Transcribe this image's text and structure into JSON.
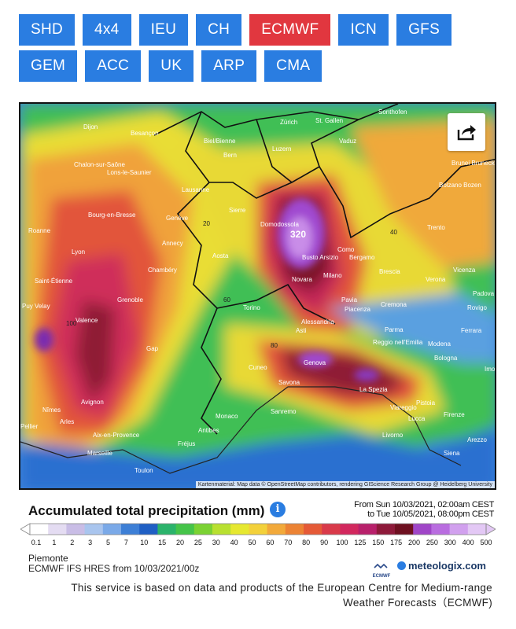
{
  "models": {
    "row1": [
      "SHD",
      "4x4",
      "IEU",
      "CH",
      "ECMWF",
      "ICN",
      "GFS"
    ],
    "row2": [
      "GEM",
      "ACC",
      "UK",
      "ARP",
      "CMA"
    ],
    "active": "ECMWF"
  },
  "map": {
    "share_icon": "share-icon",
    "attribution": "Kartenmaterial: Map data © OpenStreetMap contributors, rendering GIScience Research Group @ Heidelberg University",
    "max_label": "320",
    "cities": [
      "Sonthofen",
      "Dijon",
      "Besançon",
      "Zürich",
      "St. Gallen",
      "Vaduz",
      "Brunei Bruneck",
      "Biel/Bienne",
      "Luzern",
      "Bern",
      "Chalon-sur-Saône",
      "Lons-le-Saunier",
      "Lausanne",
      "Bolzano Bozen",
      "Sierre",
      "Bourg-en-Bresse",
      "Genève",
      "Roanne",
      "Trento",
      "Domodossola",
      "Annecy",
      "Como",
      "Lyon",
      "Aosta",
      "Bergamo",
      "Busto Arsizio",
      "Chambéry",
      "Vicenza",
      "Brescia",
      "Saint-Étienne",
      "Milano",
      "Verona",
      "Novara",
      "Padova",
      "Grenoble",
      "Puy Velay",
      "Pavia",
      "Cremona",
      "Rovigo",
      "Torino",
      "Piacenza",
      "Valence",
      "Alessandria",
      "Asti",
      "Parma",
      "Ferrara",
      "Modena",
      "Reggio nell'Emilia",
      "Gap",
      "Bologna",
      "Imola",
      "Cuneo",
      "Genova",
      "Savona",
      "La Spezia",
      "Avignon",
      "Pistoia",
      "Nîmes",
      "Viareggio",
      "Arles",
      "Lucca",
      "Firenze",
      "Monaco",
      "Sanremo",
      "Pellier",
      "Aix-en-Provence",
      "Antibes",
      "Livorno",
      "Fréjus",
      "Arezzo",
      "Marseille",
      "Siena",
      "Toulon"
    ],
    "contours": [
      "40",
      "60",
      "80",
      "100",
      "20"
    ]
  },
  "legend": {
    "title": "Accumulated total precipitation (mm)",
    "info_icon": "info-icon",
    "period_line1": "From Sun 10/03/2021, 02:00am CEST",
    "period_line2": "to Tue 10/05/2021, 08:00pm CEST",
    "ticks": [
      "0.1",
      "1",
      "2",
      "3",
      "5",
      "7",
      "10",
      "15",
      "20",
      "25",
      "30",
      "40",
      "50",
      "60",
      "70",
      "80",
      "90",
      "100",
      "125",
      "150",
      "175",
      "200",
      "250",
      "300",
      "400",
      "500"
    ],
    "colors": [
      "#ffffff",
      "#e4dcf2",
      "#c9bde6",
      "#a9c5ee",
      "#7aa9e8",
      "#3d7fd6",
      "#1f5fc4",
      "#2bb36b",
      "#45c449",
      "#7bd233",
      "#b8e030",
      "#e6e830",
      "#f3d13a",
      "#f2a93a",
      "#ec8334",
      "#e55a37",
      "#d93a4a",
      "#d2285e",
      "#b8206b",
      "#8e1a3a",
      "#6e1020",
      "#a046c8",
      "#b96de0",
      "#d1a0ee",
      "#e3c8f5"
    ]
  },
  "footer": {
    "region": "Piemonte",
    "run": "ECMWF IFS HRES from 10/03/2021/00z",
    "ecmwf_logo_text": "ECMWF",
    "meteologix": "meteologix.com",
    "disclaimer": "This service is based on data and products of the European Centre for Medium-range Weather Forecasts（ECMWF)"
  }
}
